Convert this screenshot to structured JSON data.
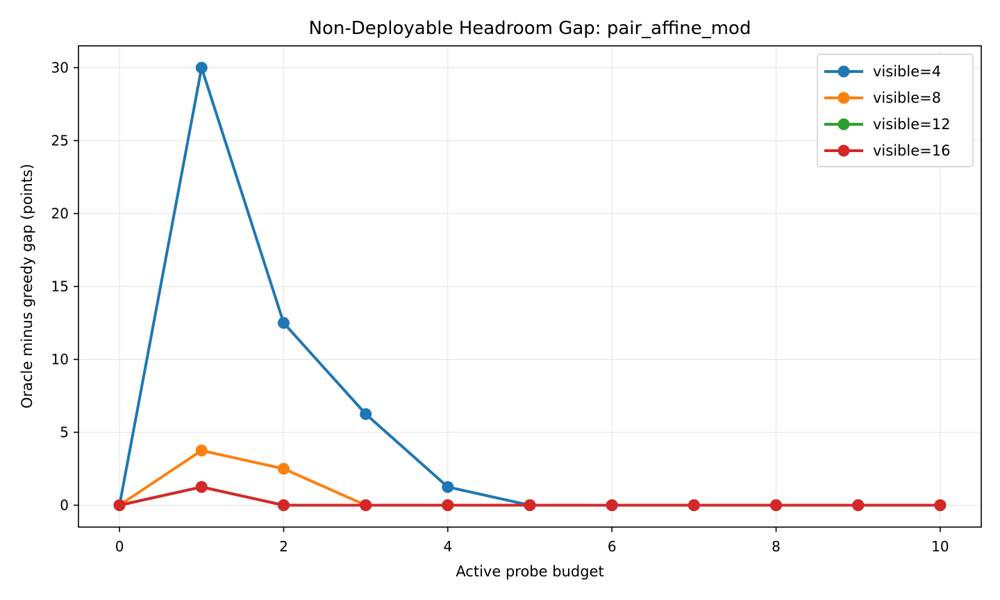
{
  "chart_data": {
    "type": "line",
    "title": "Non-Deployable Headroom Gap: pair_affine_mod",
    "xlabel": "Active probe budget",
    "ylabel": "Oracle minus greedy gap (points)",
    "xlim": [
      -0.5,
      10.5
    ],
    "ylim": [
      -1.5,
      31.5
    ],
    "xticks": [
      0,
      2,
      4,
      6,
      8,
      10
    ],
    "xtick_labels": [
      "0",
      "2",
      "4",
      "6",
      "8",
      "10"
    ],
    "yticks": [
      0,
      5,
      10,
      15,
      20,
      25,
      30
    ],
    "ytick_labels": [
      "0",
      "5",
      "10",
      "15",
      "20",
      "25",
      "30"
    ],
    "grid": true,
    "legend_position": "top-right",
    "x": [
      0,
      1,
      2,
      3,
      4,
      5,
      6,
      7,
      8,
      9,
      10
    ],
    "series": [
      {
        "name": "visible=4",
        "color": "#1f77b4",
        "values": [
          0,
          30,
          12.5,
          6.25,
          1.25,
          0,
          0,
          0,
          0,
          0,
          0
        ]
      },
      {
        "name": "visible=8",
        "color": "#ff7f0e",
        "values": [
          0,
          3.75,
          2.5,
          0,
          0,
          0,
          0,
          0,
          0,
          0,
          0
        ]
      },
      {
        "name": "visible=12",
        "color": "#2ca02c",
        "values": [
          0,
          1.25,
          0,
          0,
          0,
          0,
          0,
          0,
          0,
          0,
          0
        ]
      },
      {
        "name": "visible=16",
        "color": "#d62728",
        "values": [
          0,
          1.25,
          0,
          0,
          0,
          0,
          0,
          0,
          0,
          0,
          0
        ]
      }
    ]
  }
}
